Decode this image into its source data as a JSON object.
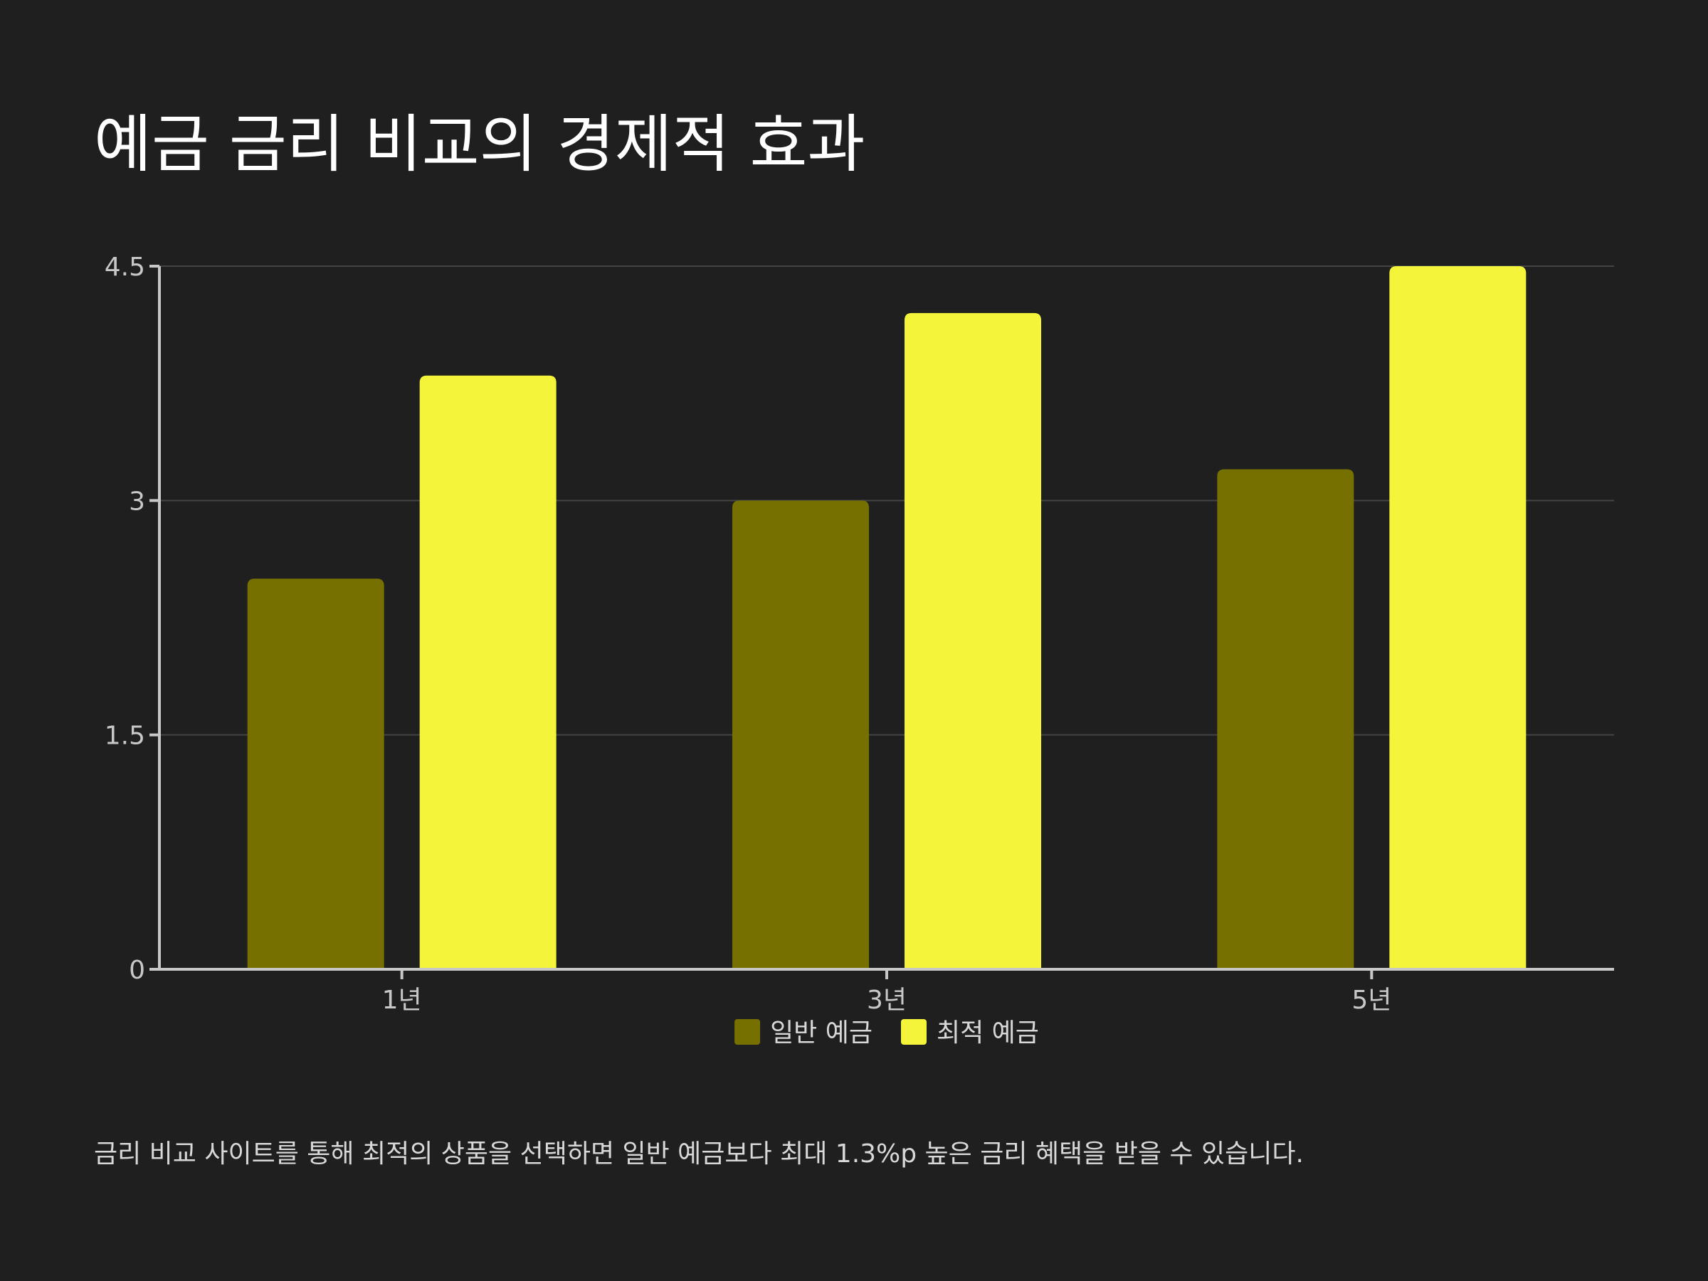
{
  "title": "예금 금리 비교의 경제적 효과",
  "caption": "금리 비교 사이트를 통해 최적의 상품을 선택하면 일반 예금보다 최대 1.3%p 높은 금리 혜택을 받을 수 있습니다.",
  "colors": {
    "background": "#1f1f1f",
    "series_normal": "#757000",
    "series_optimal": "#f4f43a",
    "grid": "#444444",
    "axis": "#c8c8c8"
  },
  "chart_data": {
    "type": "bar",
    "title": "예금 금리 비교의 경제적 효과",
    "xlabel": "",
    "ylabel": "",
    "categories": [
      "1년",
      "3년",
      "5년"
    ],
    "series": [
      {
        "name": "일반 예금",
        "values": [
          2.5,
          3.0,
          3.2
        ]
      },
      {
        "name": "최적 예금",
        "values": [
          3.8,
          4.2,
          4.5
        ]
      }
    ],
    "ylim": [
      0,
      4.5
    ],
    "yticks": [
      0,
      1.5,
      3,
      4.5
    ],
    "ytick_labels": [
      "0",
      "1.5",
      "3",
      "4.5"
    ],
    "grid": true,
    "legend_position": "bottom-center"
  }
}
